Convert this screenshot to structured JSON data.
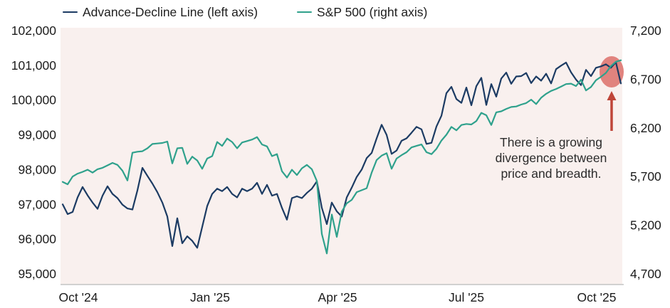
{
  "legend": {
    "items": [
      {
        "label": "Advance-Decline Line (left axis)",
        "color": "#1c3b63"
      },
      {
        "label": "S&P 500 (right axis)",
        "color": "#2fa18c"
      }
    ]
  },
  "annotation": {
    "lines": [
      "There is a growing",
      "divergence between",
      "price and breadth."
    ],
    "arrow_color": "#bf4539",
    "highlight_color": "#e1837e"
  },
  "chart_data": {
    "type": "line",
    "title": "",
    "grid": false,
    "legend_position": "top",
    "plot_background": "#f9f0ee",
    "x_tick_labels": [
      "Oct '24",
      "Jan '25",
      "Apr '25",
      "Jul '25",
      "Oct '25"
    ],
    "left_axis": {
      "label": "Advance-Decline Line",
      "range": [
        95000,
        102000
      ],
      "ticks": [
        "102,000",
        "101,000",
        "100,000",
        "99,000",
        "98,000",
        "97,000",
        "96,000",
        "95,000"
      ]
    },
    "right_axis": {
      "label": "S&P 500",
      "range": [
        4700,
        7200
      ],
      "ticks": [
        "7,200",
        "6,700",
        "6,200",
        "5,700",
        "5,200",
        "4,700"
      ]
    },
    "dates": [
      "2024-09-21",
      "2024-09-25",
      "2024-09-28",
      "2024-10-02",
      "2024-10-05",
      "2024-10-09",
      "2024-10-12",
      "2024-10-16",
      "2024-10-19",
      "2024-10-23",
      "2024-10-26",
      "2024-10-30",
      "2024-11-02",
      "2024-11-06",
      "2024-11-09",
      "2024-11-13",
      "2024-11-16",
      "2024-11-20",
      "2024-11-23",
      "2024-11-27",
      "2024-11-30",
      "2024-12-04",
      "2024-12-07",
      "2024-12-11",
      "2024-12-14",
      "2024-12-18",
      "2024-12-21",
      "2024-12-25",
      "2024-12-28",
      "2025-01-01",
      "2025-01-04",
      "2025-01-08",
      "2025-01-11",
      "2025-01-15",
      "2025-01-18",
      "2025-01-22",
      "2025-01-25",
      "2025-01-29",
      "2025-02-01",
      "2025-02-05",
      "2025-02-08",
      "2025-02-12",
      "2025-02-15",
      "2025-02-19",
      "2025-02-22",
      "2025-02-26",
      "2025-03-01",
      "2025-03-05",
      "2025-03-08",
      "2025-03-12",
      "2025-03-15",
      "2025-03-19",
      "2025-03-22",
      "2025-03-26",
      "2025-03-29",
      "2025-04-02",
      "2025-04-05",
      "2025-04-09",
      "2025-04-12",
      "2025-04-16",
      "2025-04-19",
      "2025-04-23",
      "2025-04-26",
      "2025-04-30",
      "2025-05-03",
      "2025-05-07",
      "2025-05-10",
      "2025-05-14",
      "2025-05-17",
      "2025-05-21",
      "2025-05-24",
      "2025-05-28",
      "2025-05-31",
      "2025-06-04",
      "2025-06-07",
      "2025-06-11",
      "2025-06-14",
      "2025-06-18",
      "2025-06-21",
      "2025-06-25",
      "2025-06-28",
      "2025-07-02",
      "2025-07-05",
      "2025-07-09",
      "2025-07-12",
      "2025-07-16",
      "2025-07-19",
      "2025-07-23",
      "2025-07-26",
      "2025-07-30",
      "2025-08-02",
      "2025-08-06",
      "2025-08-09",
      "2025-08-13",
      "2025-08-16",
      "2025-08-20",
      "2025-08-23",
      "2025-08-27",
      "2025-08-30",
      "2025-09-03",
      "2025-09-06",
      "2025-09-10",
      "2025-09-13",
      "2025-09-17",
      "2025-09-20",
      "2025-09-24",
      "2025-09-27",
      "2025-10-01",
      "2025-10-04",
      "2025-10-08",
      "2025-10-11",
      "2025-10-15",
      "2025-10-18"
    ],
    "series": [
      {
        "name": "Advance-Decline Line",
        "axis": "left",
        "color": "#1c3b63",
        "values": [
          97000,
          96720,
          96780,
          97200,
          97500,
          97260,
          97050,
          96870,
          97250,
          97520,
          97300,
          97180,
          96990,
          96880,
          96850,
          97400,
          98050,
          97820,
          97600,
          97350,
          97050,
          96650,
          95800,
          96600,
          95880,
          96080,
          95950,
          95750,
          96350,
          96950,
          97300,
          97450,
          97380,
          97500,
          97300,
          97200,
          97450,
          97380,
          97450,
          97620,
          97300,
          97560,
          97250,
          97300,
          96900,
          96560,
          97180,
          97230,
          97180,
          97330,
          97450,
          97660,
          96900,
          96430,
          97050,
          96800,
          96650,
          97200,
          97480,
          97790,
          98000,
          98330,
          98480,
          98900,
          99290,
          99000,
          98450,
          98550,
          98830,
          98900,
          99060,
          99230,
          99160,
          98740,
          98770,
          99240,
          99550,
          100200,
          100380,
          100030,
          99920,
          100360,
          99850,
          100400,
          100640,
          99860,
          100460,
          100100,
          100620,
          100790,
          100470,
          100680,
          100690,
          100780,
          100490,
          100680,
          100560,
          100760,
          100480,
          100890,
          100990,
          101080,
          100800,
          100590,
          100430,
          100870,
          100690,
          100930,
          100970,
          101030,
          100930,
          101090,
          100480
        ]
      },
      {
        "name": "S&P 500",
        "axis": "right",
        "color": "#2fa18c",
        "values": [
          5645,
          5620,
          5700,
          5730,
          5748,
          5770,
          5740,
          5775,
          5790,
          5815,
          5840,
          5820,
          5760,
          5660,
          5945,
          5955,
          5960,
          5990,
          6035,
          6040,
          6045,
          6060,
          5835,
          5990,
          5995,
          5830,
          5905,
          5865,
          5780,
          5885,
          5910,
          6055,
          6015,
          6090,
          6055,
          5990,
          6050,
          6065,
          6080,
          6105,
          6030,
          6010,
          5910,
          5930,
          5755,
          5690,
          5770,
          5715,
          5785,
          5820,
          5775,
          5655,
          5110,
          4910,
          5310,
          5080,
          5340,
          5425,
          5460,
          5540,
          5560,
          5580,
          5740,
          5870,
          5915,
          5940,
          5780,
          5885,
          5920,
          5950,
          6000,
          6015,
          6030,
          5950,
          5930,
          5985,
          6070,
          6130,
          6210,
          6175,
          6230,
          6240,
          6235,
          6270,
          6355,
          6330,
          6230,
          6360,
          6370,
          6395,
          6415,
          6420,
          6440,
          6455,
          6490,
          6445,
          6510,
          6550,
          6580,
          6600,
          6625,
          6650,
          6655,
          6630,
          6695,
          6585,
          6620,
          6690,
          6725,
          6765,
          6835,
          6880,
          6895
        ]
      }
    ]
  }
}
